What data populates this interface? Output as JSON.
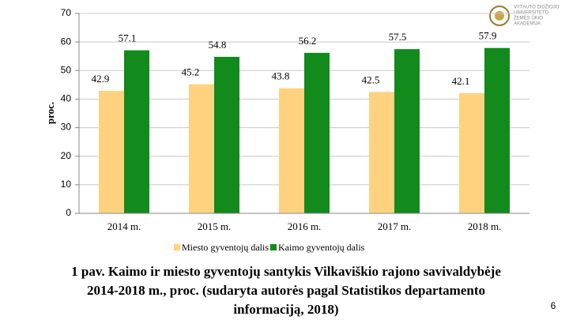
{
  "chart_data": {
    "type": "bar",
    "ylabel": "proc.",
    "categories": [
      "2014 m.",
      "2015 m.",
      "2016 m.",
      "2017 m.",
      "2018 m."
    ],
    "series": [
      {
        "name": "Miesto gyventojų dalis",
        "color": "#ffd27f",
        "values": [
          42.9,
          45.2,
          43.8,
          42.5,
          42.1
        ]
      },
      {
        "name": "Kaimo gyventojų dalis",
        "color": "#128a1c",
        "values": [
          57.1,
          54.8,
          56.2,
          57.5,
          57.9
        ]
      }
    ],
    "ylim": [
      0,
      70
    ],
    "yticks": [
      0,
      10,
      20,
      30,
      40,
      50,
      60,
      70
    ],
    "grid": true,
    "legend": "bottom"
  },
  "logo": {
    "lines": [
      "VYTAUTO DIDŽIOJO",
      "UNIVERSITETO",
      "ŽEMĖS ŪKIO",
      "AKADEMIJA"
    ]
  },
  "caption": {
    "lines": [
      "1 pav. Kaimo ir miesto gyventojų santykis Vilkaviškio rajono savivaldybėje",
      "2014-2018 m., proc. (sudaryta autorės pagal Statistikos departamento",
      "informaciją, 2018)"
    ]
  },
  "page_number": "6"
}
